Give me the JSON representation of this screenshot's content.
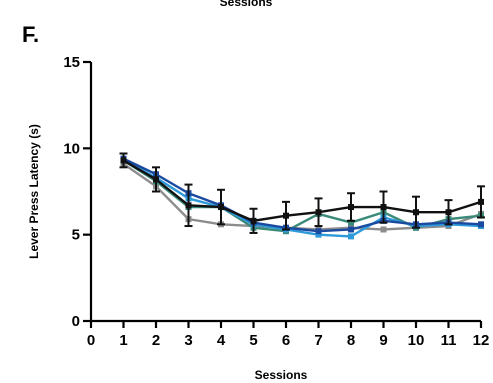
{
  "chart_data": {
    "type": "line",
    "panel_label": "F.",
    "top_caption": "Sessions",
    "xlabel": "Sessions",
    "ylabel": "Lever Press Latency (s)",
    "xlim": [
      0,
      12
    ],
    "ylim": [
      0,
      15
    ],
    "x_ticks": [
      0,
      1,
      2,
      3,
      4,
      5,
      6,
      7,
      8,
      9,
      10,
      11,
      12
    ],
    "y_ticks": [
      0,
      5,
      10,
      15
    ],
    "x": [
      1,
      2,
      3,
      4,
      5,
      6,
      7,
      8,
      9,
      10,
      11,
      12
    ],
    "grid": false,
    "legend": "none",
    "series": [
      {
        "color": "#8c8c8c",
        "values": [
          9.1,
          7.8,
          5.9,
          5.6,
          5.5,
          5.4,
          5.3,
          5.4,
          5.3,
          5.4,
          5.5,
          6.2
        ],
        "err": []
      },
      {
        "color": "#3a8a7a",
        "values": [
          9.3,
          8.1,
          6.6,
          6.6,
          5.4,
          5.2,
          6.2,
          5.7,
          6.3,
          5.4,
          5.9,
          6.1
        ],
        "err": []
      },
      {
        "color": "#2e9ad9",
        "values": [
          9.3,
          8.3,
          7.1,
          6.6,
          5.6,
          5.3,
          5.0,
          4.9,
          6.0,
          5.5,
          5.6,
          5.5
        ],
        "err": []
      },
      {
        "color": "#1a4aa0",
        "values": [
          9.4,
          8.5,
          7.4,
          6.7,
          5.7,
          5.4,
          5.2,
          5.3,
          5.8,
          5.6,
          5.7,
          5.6
        ],
        "err": []
      },
      {
        "color": "#111111",
        "values": [
          9.3,
          8.2,
          6.7,
          6.6,
          5.8,
          6.1,
          6.3,
          6.6,
          6.6,
          6.3,
          6.3,
          6.9
        ],
        "err": [
          0.4,
          0.7,
          1.2,
          1.0,
          0.7,
          0.8,
          0.8,
          0.8,
          0.9,
          0.9,
          0.7,
          0.9
        ]
      }
    ]
  }
}
